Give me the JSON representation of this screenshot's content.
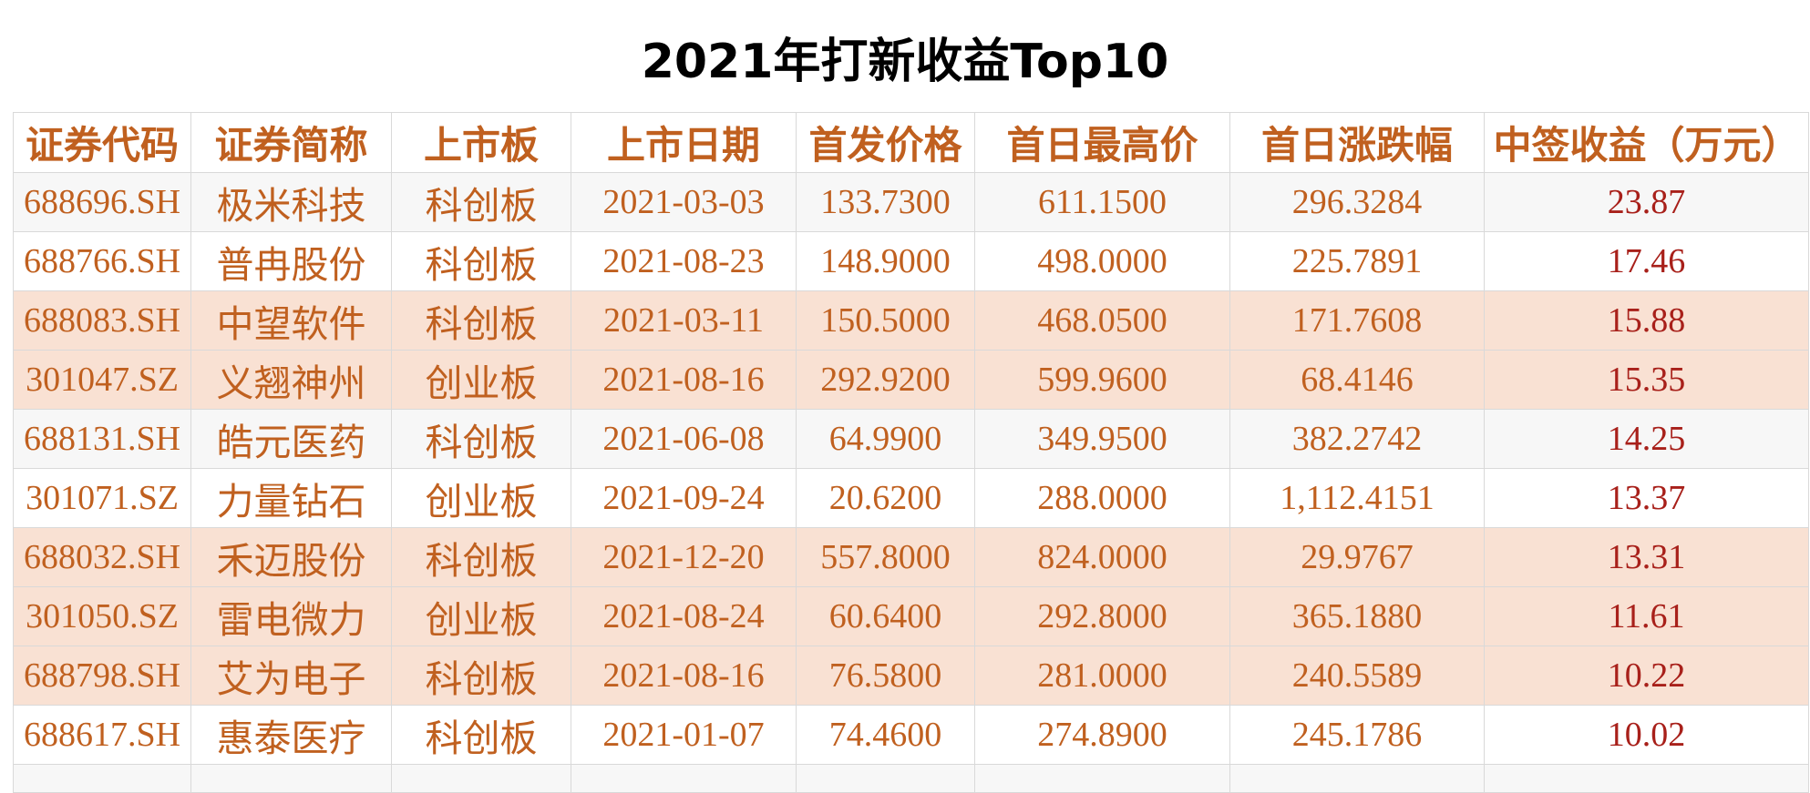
{
  "title": "2021年打新收益Top10",
  "columns": [
    "证券代码",
    "证券简称",
    "上市板",
    "上市日期",
    "首发价格",
    "首日最高价",
    "首日涨跌幅",
    "中签收益（万元）"
  ],
  "rows": [
    {
      "code": "688696.SH",
      "name": "极米科技",
      "board": "科创板",
      "date": "2021-03-03",
      "ipo_price": "133.7300",
      "high": "611.1500",
      "change": "296.3284",
      "profit": "23.87",
      "shade": "grey"
    },
    {
      "code": "688766.SH",
      "name": "普冉股份",
      "board": "科创板",
      "date": "2021-08-23",
      "ipo_price": "148.9000",
      "high": "498.0000",
      "change": "225.7891",
      "profit": "17.46",
      "shade": "white"
    },
    {
      "code": "688083.SH",
      "name": "中望软件",
      "board": "科创板",
      "date": "2021-03-11",
      "ipo_price": "150.5000",
      "high": "468.0500",
      "change": "171.7608",
      "profit": "15.88",
      "shade": "peach"
    },
    {
      "code": "301047.SZ",
      "name": "义翘神州",
      "board": "创业板",
      "date": "2021-08-16",
      "ipo_price": "292.9200",
      "high": "599.9600",
      "change": "68.4146",
      "profit": "15.35",
      "shade": "peach"
    },
    {
      "code": "688131.SH",
      "name": "皓元医药",
      "board": "科创板",
      "date": "2021-06-08",
      "ipo_price": "64.9900",
      "high": "349.9500",
      "change": "382.2742",
      "profit": "14.25",
      "shade": "grey"
    },
    {
      "code": "301071.SZ",
      "name": "力量钻石",
      "board": "创业板",
      "date": "2021-09-24",
      "ipo_price": "20.6200",
      "high": "288.0000",
      "change": "1,112.4151",
      "profit": "13.37",
      "shade": "white"
    },
    {
      "code": "688032.SH",
      "name": "禾迈股份",
      "board": "科创板",
      "date": "2021-12-20",
      "ipo_price": "557.8000",
      "high": "824.0000",
      "change": "29.9767",
      "profit": "13.31",
      "shade": "peach"
    },
    {
      "code": "301050.SZ",
      "name": "雷电微力",
      "board": "创业板",
      "date": "2021-08-24",
      "ipo_price": "60.6400",
      "high": "292.8000",
      "change": "365.1880",
      "profit": "11.61",
      "shade": "peach"
    },
    {
      "code": "688798.SH",
      "name": "艾为电子",
      "board": "科创板",
      "date": "2021-08-16",
      "ipo_price": "76.5800",
      "high": "281.0000",
      "change": "240.5589",
      "profit": "10.22",
      "shade": "peach"
    },
    {
      "code": "688617.SH",
      "name": "惠泰医疗",
      "board": "科创板",
      "date": "2021-01-07",
      "ipo_price": "74.4600",
      "high": "274.8900",
      "change": "245.1786",
      "profit": "10.02",
      "shade": "white"
    }
  ],
  "colors": {
    "header_text": "#c0601f",
    "cell_text": "#c0601f",
    "profit_text": "#a8201a",
    "peach_row": "#f9e1d3",
    "grey_row": "#f7f7f7",
    "border": "#d9d9d9"
  }
}
